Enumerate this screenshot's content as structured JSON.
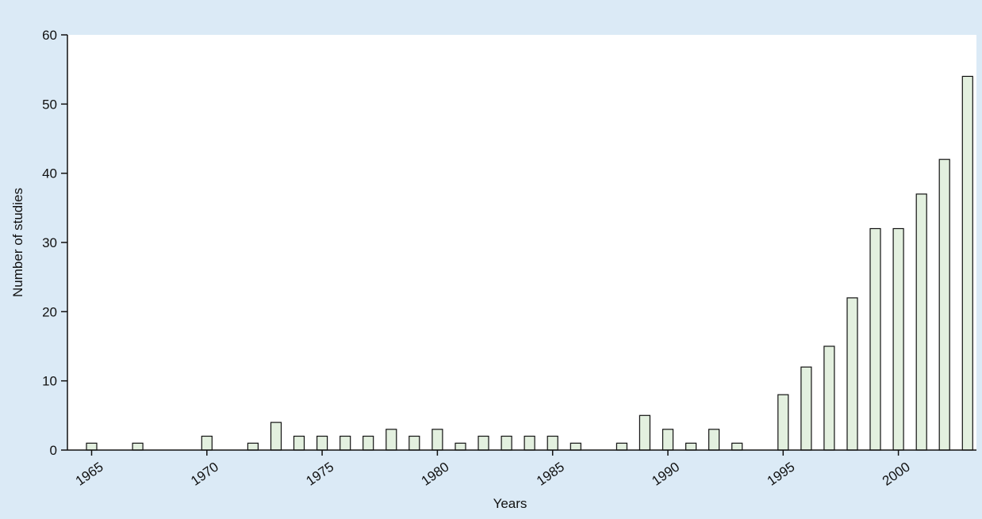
{
  "chart_data": {
    "type": "bar",
    "xlabel": "Years",
    "ylabel": "Number of studies",
    "ylim": [
      0,
      60
    ],
    "yticks": [
      0,
      10,
      20,
      30,
      40,
      50,
      60
    ],
    "xtick_labels": [
      "1965",
      "1970",
      "1975",
      "1980",
      "1985",
      "1990",
      "1995",
      "2000"
    ],
    "grid": false,
    "x": [
      1965,
      1967,
      1970,
      1972,
      1973,
      1974,
      1975,
      1976,
      1977,
      1978,
      1979,
      1980,
      1981,
      1982,
      1983,
      1984,
      1985,
      1986,
      1988,
      1989,
      1990,
      1991,
      1992,
      1993,
      1995,
      1996,
      1997,
      1998,
      1999,
      2000,
      2001,
      2002,
      2003
    ],
    "values": [
      1,
      1,
      2,
      1,
      4,
      2,
      2,
      2,
      2,
      3,
      2,
      3,
      1,
      2,
      2,
      2,
      2,
      1,
      1,
      5,
      3,
      1,
      3,
      1,
      8,
      12,
      15,
      22,
      32,
      32,
      37,
      42,
      54
    ]
  },
  "colors": {
    "background": "#dbeaf6",
    "plot_area": "#ffffff",
    "bar_fill": "#e3f0df",
    "bar_stroke": "#111111",
    "axis": "#111111"
  }
}
